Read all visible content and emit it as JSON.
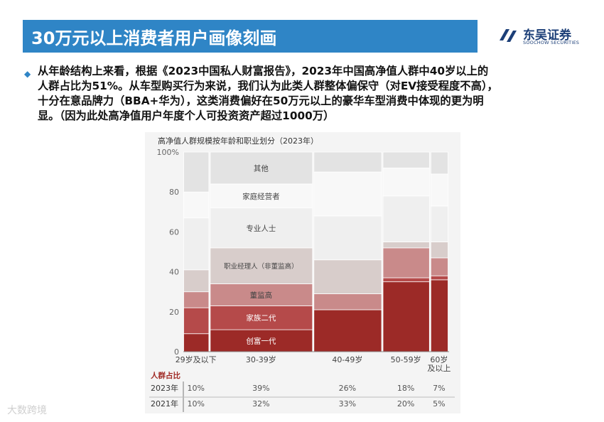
{
  "header": {
    "title": "30万元以上消费者用户画像刻画",
    "logo_cn": "东吴证券",
    "logo_en": "SOOCHOW SECURITIES",
    "bar_color": "#2f85c6"
  },
  "bullet": {
    "icon": "diamond-bullet-icon",
    "lines": [
      "从年龄结构上来看，根据《2023中国私人财富报告》，2023年中国高净值人群中40岁以上的",
      "人群占比为51%。从车型购买行为来说，我们认为此类人群整体偏保守（对EV接受程度不高），",
      "十分在意品牌力（BBA+华为），这类消费偏好在50万元以上的豪华车型消费中体现的更为明",
      "显。（因为此处高净值用户年度个人可投资资产超过1000万）"
    ]
  },
  "chart_data": {
    "type": "bar",
    "title": "高净值人群规模按年龄和职业划分（2023年）",
    "categories": [
      "29岁及以下",
      "30-39岁",
      "40-49岁",
      "50-59岁",
      "60岁及以上"
    ],
    "widths": [
      10,
      39,
      26,
      18,
      7
    ],
    "series": [
      {
        "name": "创富一代",
        "values": [
          9,
          11,
          21,
          35,
          36
        ],
        "color": "#9c2a27"
      },
      {
        "name": "家族二代",
        "values": [
          13,
          12,
          0,
          2,
          2
        ],
        "color": "#b54a4a"
      },
      {
        "name": "董监高",
        "values": [
          8,
          11,
          8,
          15,
          9
        ],
        "color": "#c98a8a"
      },
      {
        "name": "职业经理人（非董监高）",
        "values": [
          11,
          18,
          17,
          3,
          8
        ],
        "color": "#d8cdcb"
      },
      {
        "name": "专业人士",
        "values": [
          26,
          20,
          22,
          23,
          18
        ],
        "color": "#efefef"
      },
      {
        "name": "家庭经营者",
        "values": [
          13,
          12,
          22,
          14,
          16
        ],
        "color": "#f8f8f8"
      },
      {
        "name": "其他",
        "values": [
          20,
          16,
          10,
          8,
          11
        ],
        "color": "#e3e3e3"
      }
    ],
    "yticks": [
      0,
      20,
      40,
      60,
      80,
      "100%"
    ],
    "ylim": [
      0,
      100
    ],
    "category_labels": [
      [
        "29岁及以下"
      ],
      [
        "30-39岁"
      ],
      [
        "40-49岁"
      ],
      [
        "50-59岁"
      ],
      [
        "60岁",
        "及以上"
      ]
    ],
    "segment_labels": [
      {
        "category": 1,
        "series": 0,
        "text": "创富一代"
      },
      {
        "category": 1,
        "series": 1,
        "text": "家族二代"
      },
      {
        "category": 1,
        "series": 2,
        "text": "董监高"
      },
      {
        "category": 1,
        "series": 3,
        "text": "职业经理人（非董监高）"
      },
      {
        "category": 1,
        "series": 4,
        "text": "专业人士"
      },
      {
        "category": 1,
        "series": 5,
        "text": "家庭经营者"
      },
      {
        "category": 1,
        "series": 6,
        "text": "其他"
      }
    ],
    "share_table": {
      "header": "人群占比",
      "rows": [
        {
          "year": "2023年",
          "values": [
            "10%",
            "39%",
            "26%",
            "18%",
            "7%"
          ]
        },
        {
          "year": "2021年",
          "values": [
            "10%",
            "32%",
            "33%",
            "20%",
            "5%"
          ]
        }
      ]
    }
  },
  "watermark": "大数跨境"
}
